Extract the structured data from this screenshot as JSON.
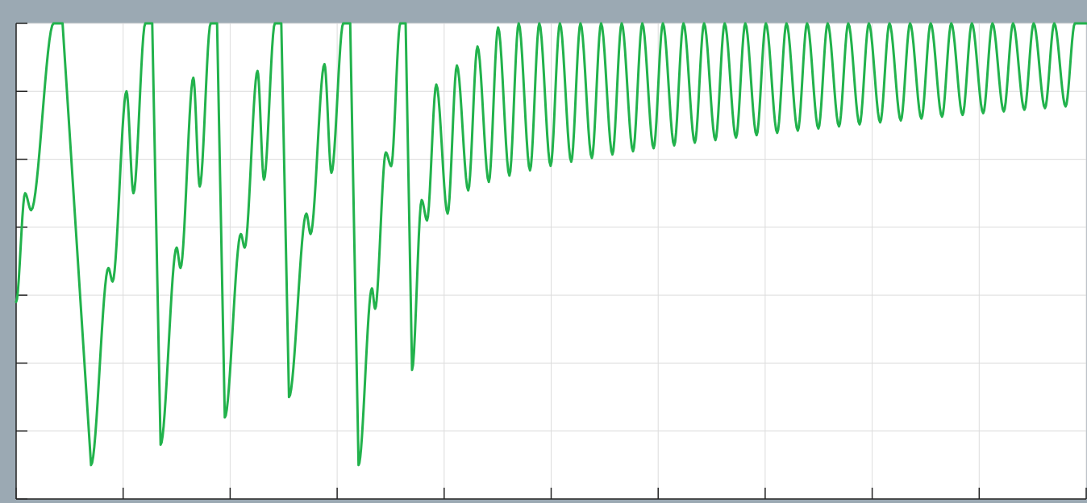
{
  "theme": {
    "frame_bg": "#9ba9b3",
    "plot_bg": "#ffffff",
    "grid_color": "#dcdcdc",
    "axis_color": "#222222",
    "series_color": "#22b24c"
  },
  "chart_data": {
    "type": "line",
    "title": "",
    "xlabel": "",
    "ylabel": "",
    "grid": true,
    "legend": "none",
    "xlim": [
      0,
      10
    ],
    "ylim": [
      0,
      7
    ],
    "x_ticks": [
      0,
      1,
      2,
      3,
      4,
      5,
      6,
      7,
      8,
      9,
      10
    ],
    "y_ticks": [
      0,
      1,
      2,
      3,
      4,
      5,
      6,
      7
    ],
    "saturation_level": 7,
    "phase1": {
      "description_free": true,
      "cycles": [
        {
          "start": 0.0,
          "end": 0.7,
          "start_y": 2.9,
          "step_y": 4.5,
          "shoulder_min_y": 4.25,
          "peak_y": 7.0,
          "min_y": 0.5
        },
        {
          "start": 0.7,
          "end": 1.35,
          "start_y": 0.5,
          "step_y": 3.4,
          "shoulder_min_y": 3.2,
          "peak_y": 6.0,
          "min_y": 4.5,
          "rise_to": 7.0,
          "drop_y": 0.8
        },
        {
          "start": 1.35,
          "end": 1.95,
          "start_y": 0.8,
          "step_y": 3.7,
          "shoulder_min_y": 3.4,
          "peak_y": 6.2,
          "min_y": 4.6,
          "rise_to": 7.0,
          "drop_y": 1.2
        },
        {
          "start": 1.95,
          "end": 2.55,
          "start_y": 1.2,
          "step_y": 3.9,
          "shoulder_min_y": 3.7,
          "peak_y": 6.3,
          "min_y": 4.7,
          "rise_to": 7.0,
          "drop_y": 1.5
        },
        {
          "start": 2.55,
          "end": 3.2,
          "start_y": 1.5,
          "step_y": 4.2,
          "shoulder_min_y": 3.9,
          "peak_y": 6.4,
          "min_y": 4.8,
          "rise_to": 7.0,
          "drop_y": 0.5
        },
        {
          "start": 3.2,
          "end": 3.7,
          "start_y": 0.5,
          "step_y": 3.1,
          "shoulder_min_y": 2.8,
          "peak_y": 5.1,
          "min_y": 4.9,
          "rise_to": 7.0,
          "drop_y": 1.9
        }
      ]
    },
    "phase2": {
      "start": 3.7,
      "end": 10.0,
      "cycles": 32,
      "peak_y": 7.0,
      "first_min_y": 4.2,
      "last_min_y": 5.8,
      "ramp_start_y": 1.9,
      "ramp_step_y": 4.4,
      "ramp_shoulder_min_y": 4.1
    }
  }
}
